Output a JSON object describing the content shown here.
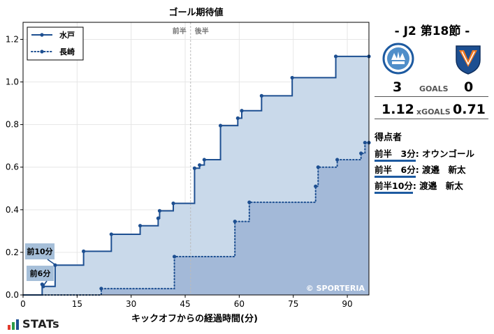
{
  "chart_data": {
    "type": "line",
    "title": "ゴール期待値",
    "xlabel": "キックオフからの経過時間(分)",
    "ylabel": "",
    "xlim": [
      0,
      96
    ],
    "ylim": [
      0,
      1.28
    ],
    "xticks": [
      0,
      15,
      30,
      45,
      60,
      75,
      90
    ],
    "yticks": [
      0.0,
      0.2,
      0.4,
      0.6,
      0.8,
      1.0,
      1.2
    ],
    "half_marker": {
      "x": 46.5,
      "left_label": "前半",
      "right_label": "後半"
    },
    "grid": true,
    "legend_position": "top-left",
    "watermark": "© SPORTERIA",
    "series": [
      {
        "name": "水戸",
        "style": "solid",
        "color": "#1d4f91",
        "fill": "#c9d9ea",
        "x": [
          0,
          5.3,
          5.6,
          8.9,
          16.8,
          24.5,
          32.5,
          37.5,
          37.9,
          41.7,
          47.6,
          49.0,
          50.3,
          54.8,
          59.6,
          60.7,
          66.2,
          74.7,
          86.8,
          96
        ],
        "y": [
          0,
          0.05,
          0.04,
          0.14,
          0.205,
          0.285,
          0.325,
          0.36,
          0.395,
          0.43,
          0.595,
          0.61,
          0.635,
          0.795,
          0.83,
          0.865,
          0.935,
          1.02,
          1.12,
          1.12
        ]
      },
      {
        "name": "長崎",
        "style": "dotted",
        "color": "#1d4f91",
        "fill": "#a3b9d8",
        "x": [
          0,
          21.7,
          42.0,
          58.8,
          62.8,
          81.2,
          81.9,
          87.2,
          93.8,
          94.9,
          96
        ],
        "y": [
          0,
          0.03,
          0.18,
          0.345,
          0.435,
          0.51,
          0.6,
          0.635,
          0.665,
          0.715,
          0.715
        ]
      }
    ],
    "annotations": [
      {
        "text": "前10分",
        "x": 9.1,
        "y": 0.14
      },
      {
        "text": "前6分",
        "x": 5.5,
        "y": 0.04
      }
    ]
  },
  "match": {
    "title": "-  J2 第18節  -",
    "home_goals": "3",
    "goals_label": "GOALS",
    "away_goals": "0",
    "home_xg": "1.12",
    "xg_label": "xGOALS",
    "away_xg": "0.71"
  },
  "scorers": {
    "title": "得点者",
    "items": [
      {
        "time": "前半　3分",
        "name": ": オウンゴール"
      },
      {
        "time": "前半　6分",
        "name": ": 渡邉　新太"
      },
      {
        "time": "前半10分",
        "name": ": 渡邉　新太"
      }
    ]
  },
  "brand": {
    "name": "STATs"
  }
}
